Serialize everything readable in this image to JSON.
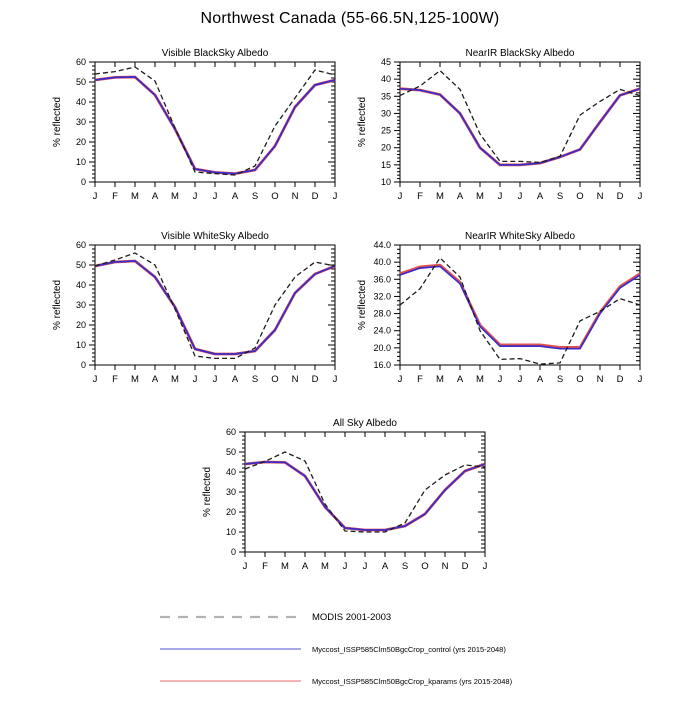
{
  "title": "Northwest Canada (55-66.5N,125-100W)",
  "ylabel": "% reflected",
  "months": [
    "J",
    "F",
    "M",
    "A",
    "M",
    "J",
    "J",
    "A",
    "S",
    "O",
    "N",
    "D",
    "J"
  ],
  "colors": {
    "modis_plot": "#1c1c1c",
    "control_plot": "#3b2cc9",
    "kparams_plot": "#e05252",
    "modis_legend": "#b3b3b3",
    "control_legend": "#7575e0",
    "kparams_legend": "#f5aaaa",
    "axis": "#000000"
  },
  "legend": {
    "items": [
      {
        "label": "MODIS 2001-2003",
        "style": "dashed",
        "color": "#b3b3b3"
      },
      {
        "label": "Myccost_ISSP585Clm50BgcCrop_control (yrs 2015-2048)",
        "style": "solid",
        "color": "#7575e0"
      },
      {
        "label": "Myccost_ISSP585Clm50BgcCrop_kparams (yrs 2015-2048)",
        "style": "solid",
        "color": "#f5aaaa"
      }
    ]
  },
  "chart_data": [
    {
      "type": "line",
      "title": "Visible BlackSky Albedo",
      "xlabel": "",
      "ylabel": "% reflected",
      "categories": [
        "J",
        "F",
        "M",
        "A",
        "M",
        "J",
        "J",
        "A",
        "S",
        "O",
        "N",
        "D",
        "J"
      ],
      "ylim": [
        0,
        60
      ],
      "ytick_step": 10,
      "yminor_step": 2,
      "ytick_decimals": 0,
      "series": [
        {
          "name": "Myccost_ISSP585Clm50BgcCrop_kparams",
          "role": "kparams",
          "style": "solid",
          "color": "#e05252",
          "values": [
            51,
            52.3,
            52.5,
            43.5,
            26.5,
            6.5,
            4.8,
            4.2,
            6,
            18,
            37.5,
            48.5,
            51
          ]
        },
        {
          "name": "Myccost_ISSP585Clm50BgcCrop_control",
          "role": "control",
          "style": "solid",
          "color": "#3b2cc9",
          "values": [
            51,
            52.3,
            52.5,
            43.5,
            26.5,
            6.5,
            4.8,
            4.2,
            6,
            18,
            37.5,
            48.5,
            51
          ]
        },
        {
          "name": "MODIS 2001-2003",
          "role": "modis",
          "style": "dashed",
          "color": "#1c1c1c",
          "values": [
            54,
            55.2,
            57.5,
            50.5,
            27,
            5,
            4.2,
            3.5,
            8,
            28,
            42,
            56,
            53.5
          ]
        }
      ]
    },
    {
      "type": "line",
      "title": "NearIR BlackSky Albedo",
      "xlabel": "",
      "ylabel": "% reflected",
      "categories": [
        "J",
        "F",
        "M",
        "A",
        "M",
        "J",
        "J",
        "A",
        "S",
        "O",
        "N",
        "D",
        "J"
      ],
      "ylim": [
        10,
        45
      ],
      "ytick_step": 5,
      "yminor_step": 1,
      "ytick_decimals": 0,
      "series": [
        {
          "name": "Myccost_ISSP585Clm50BgcCrop_kparams",
          "role": "kparams",
          "style": "solid",
          "color": "#e05252",
          "values": [
            37.2,
            36.8,
            35.5,
            30,
            20,
            15,
            15,
            15.5,
            17.3,
            19.5,
            27.5,
            35.3,
            37.2
          ]
        },
        {
          "name": "Myccost_ISSP585Clm50BgcCrop_control",
          "role": "control",
          "style": "solid",
          "color": "#3b2cc9",
          "values": [
            37.2,
            36.8,
            35.5,
            30,
            20,
            15,
            15,
            15.5,
            17.3,
            19.5,
            27.5,
            35.3,
            37.2
          ]
        },
        {
          "name": "MODIS 2001-2003",
          "role": "modis",
          "style": "dashed",
          "color": "#1c1c1c",
          "values": [
            35.2,
            38,
            42.5,
            37,
            24,
            16,
            16,
            15.7,
            17.5,
            29.5,
            33.5,
            37,
            35.2
          ]
        }
      ]
    },
    {
      "type": "line",
      "title": "Visible WhiteSky Albedo",
      "xlabel": "",
      "ylabel": "% reflected",
      "categories": [
        "J",
        "F",
        "M",
        "A",
        "M",
        "J",
        "J",
        "A",
        "S",
        "O",
        "N",
        "D",
        "J"
      ],
      "ylim": [
        0,
        60
      ],
      "ytick_step": 10,
      "yminor_step": 2,
      "ytick_decimals": 0,
      "series": [
        {
          "name": "Myccost_ISSP585Clm50BgcCrop_kparams",
          "role": "kparams",
          "style": "solid",
          "color": "#e05252",
          "values": [
            49.5,
            51.5,
            52,
            44,
            29,
            8,
            5.5,
            5.5,
            7,
            17.5,
            36,
            45.5,
            49.5
          ]
        },
        {
          "name": "Myccost_ISSP585Clm50BgcCrop_control",
          "role": "control",
          "style": "solid",
          "color": "#3b2cc9",
          "values": [
            49.5,
            51.5,
            52,
            44,
            29,
            8,
            5.5,
            5.5,
            7,
            17.5,
            36,
            45.5,
            49.5
          ]
        },
        {
          "name": "MODIS 2001-2003",
          "role": "modis",
          "style": "dashed",
          "color": "#1c1c1c",
          "values": [
            49.5,
            52.5,
            56,
            50,
            28,
            4.5,
            3.3,
            3.3,
            8.5,
            30,
            44,
            51.5,
            49.5
          ]
        }
      ]
    },
    {
      "type": "line",
      "title": "NearIR WhiteSky Albedo",
      "xlabel": "",
      "ylabel": "% reflected",
      "categories": [
        "J",
        "F",
        "M",
        "A",
        "M",
        "J",
        "J",
        "A",
        "S",
        "O",
        "N",
        "D",
        "J"
      ],
      "ylim": [
        16,
        44
      ],
      "ytick_step": 4,
      "yminor_step": 1,
      "ytick_decimals": 1,
      "series": [
        {
          "name": "Myccost_ISSP585Clm50BgcCrop_kparams",
          "role": "kparams",
          "style": "solid",
          "color": "#e05252",
          "values": [
            37.3,
            38.9,
            39.3,
            35.3,
            25.3,
            20.7,
            20.7,
            20.7,
            20.1,
            20.1,
            28.3,
            34.3,
            37.3
          ]
        },
        {
          "name": "Myccost_ISSP585Clm50BgcCrop_control",
          "role": "control",
          "style": "solid",
          "color": "#3b2cc9",
          "values": [
            37,
            38.6,
            39,
            35,
            25,
            20.4,
            20.4,
            20.4,
            19.8,
            19.8,
            28,
            34,
            37
          ]
        },
        {
          "name": "MODIS 2001-2003",
          "role": "modis",
          "style": "dashed",
          "color": "#1c1c1c",
          "values": [
            30,
            33.8,
            41,
            36.5,
            24,
            17.3,
            17.5,
            16.2,
            16.5,
            26.3,
            28.5,
            31.5,
            30
          ]
        }
      ]
    },
    {
      "type": "line",
      "title": "All Sky Albedo",
      "xlabel": "",
      "ylabel": "% reflected",
      "categories": [
        "J",
        "F",
        "M",
        "A",
        "M",
        "J",
        "J",
        "A",
        "S",
        "O",
        "N",
        "D",
        "J"
      ],
      "ylim": [
        0,
        60
      ],
      "ytick_step": 10,
      "yminor_step": 2,
      "ytick_decimals": 0,
      "series": [
        {
          "name": "Myccost_ISSP585Clm50BgcCrop_kparams",
          "role": "kparams",
          "style": "solid",
          "color": "#e05252",
          "values": [
            44,
            45,
            44.8,
            38,
            22.5,
            12,
            11,
            11,
            13,
            19,
            31,
            40.5,
            44
          ]
        },
        {
          "name": "Myccost_ISSP585Clm50BgcCrop_control",
          "role": "control",
          "style": "solid",
          "color": "#3b2cc9",
          "values": [
            44,
            45,
            44.8,
            38,
            22.5,
            12,
            11,
            11,
            13,
            19,
            31,
            40.5,
            44
          ]
        },
        {
          "name": "MODIS 2001-2003",
          "role": "modis",
          "style": "dashed",
          "color": "#1c1c1c",
          "values": [
            41.5,
            45.3,
            50,
            45.5,
            24,
            10.5,
            10,
            10,
            14.5,
            31,
            38.5,
            43.5,
            42.5
          ]
        }
      ]
    }
  ]
}
